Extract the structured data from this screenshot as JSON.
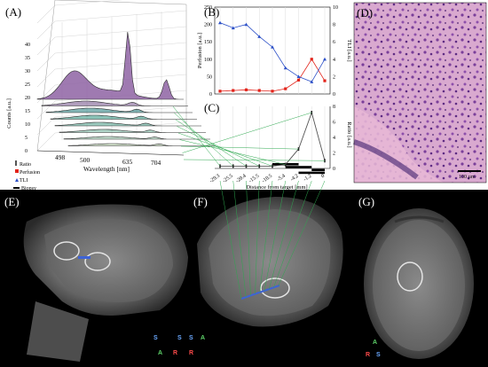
{
  "panels": {
    "a": "(A)",
    "b": "(B)",
    "c": "(C)",
    "d": "(D)",
    "e": "(E)",
    "f": "(F)",
    "g": "(G)"
  },
  "colors": {
    "perfusion": "#e2231a",
    "tli": "#2b4fc7",
    "ratio": "#555555",
    "biopsy": "#000000",
    "spectra_fill": "#8e63a3",
    "link_lines": "#2ea84f"
  },
  "chart_data": [
    {
      "type": "area",
      "panel": "A",
      "ylabel": "Counts [a.u.]",
      "xlabel": "Wavelength [nm]",
      "x_ticks": [
        "500",
        "635",
        "704"
      ],
      "extra_x_tick": "498",
      "z_ticks": [
        "0",
        "5",
        "10",
        "15",
        "20",
        "25",
        "30",
        "35",
        "40"
      ],
      "series_count": 8,
      "peak_wavelengths": [
        635,
        704
      ]
    },
    {
      "type": "line",
      "panel": "B",
      "ylabel_left": "Perfusion [a.u.]",
      "ylabel_right": "TLI [a.u.]",
      "yticks_left": [
        "0",
        "50",
        "100",
        "150",
        "200",
        "250"
      ],
      "yticks_right": [
        "0",
        "2",
        "4",
        "6",
        "8",
        "10"
      ],
      "ylim_left": [
        0,
        250
      ],
      "ylim_right": [
        0,
        10
      ],
      "x": [
        -29.3,
        -25.5,
        -20.4,
        -15.5,
        -10.5,
        -5.4,
        -4.2,
        -1.2,
        0
      ],
      "series": [
        {
          "name": "Perfusion",
          "axis": "left",
          "values": [
            8,
            10,
            12,
            10,
            8,
            15,
            40,
            100,
            38
          ]
        },
        {
          "name": "TLI",
          "axis": "right",
          "values": [
            8.2,
            7.6,
            8.0,
            6.6,
            5.4,
            3.0,
            2.0,
            1.4,
            4.0
          ]
        }
      ]
    },
    {
      "type": "line",
      "panel": "C",
      "ylabel_right": "Ratio [a.u.]",
      "xlabel": "Distance from target [mm]",
      "x_ticklabels": [
        "-29.3",
        "-25.5",
        "-20.4",
        "-15.5",
        "-10.5",
        "-5.4",
        "-4.2",
        "-1.2",
        "0"
      ],
      "yticks_right": [
        "0",
        "2",
        "4",
        "6",
        "8"
      ],
      "ylim": [
        0,
        8
      ],
      "series": [
        {
          "name": "Ratio",
          "values": [
            0.3,
            0.3,
            0.3,
            0.3,
            0.3,
            0.5,
            2.5,
            7.2,
            1.0
          ]
        }
      ],
      "biopsy_intervals": [
        [
          -10.5,
          -4.2
        ],
        [
          -5.4,
          -1.2
        ],
        [
          -1.2,
          0
        ],
        [
          -4.2,
          0
        ]
      ]
    }
  ],
  "legend": [
    "Ratio",
    "Perfusion",
    "TLI",
    "Biopsy"
  ],
  "scale_bar": "100 µm",
  "orientation": {
    "e": [
      "S",
      "A",
      "R"
    ],
    "f": [
      "S",
      "A",
      "R"
    ],
    "g": [
      "A",
      "R",
      "S"
    ]
  }
}
